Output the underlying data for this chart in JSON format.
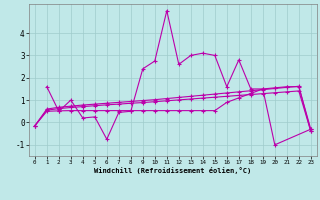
{
  "background_color": "#c0e8e8",
  "grid_color": "#a0cccc",
  "line_color": "#bb00aa",
  "marker": "+",
  "markersize": 3,
  "linewidth": 0.8,
  "xlabel": "Windchill (Refroidissement éolien,°C)",
  "xlim": [
    -0.5,
    23.5
  ],
  "ylim": [
    -1.5,
    5.3
  ],
  "yticks": [
    -1,
    0,
    1,
    2,
    3,
    4
  ],
  "xticks": [
    0,
    1,
    2,
    3,
    4,
    5,
    6,
    7,
    8,
    9,
    10,
    11,
    12,
    13,
    14,
    15,
    16,
    17,
    18,
    19,
    20,
    21,
    22,
    23
  ],
  "series": [
    {
      "x": [
        1,
        2,
        3,
        4,
        5,
        6,
        7,
        8,
        9,
        10,
        11,
        12,
        13,
        14,
        15,
        16,
        17,
        18,
        19,
        20,
        23
      ],
      "y": [
        1.6,
        0.5,
        1.0,
        0.2,
        0.25,
        -0.75,
        0.45,
        0.5,
        2.4,
        2.75,
        5.0,
        2.6,
        3.0,
        3.1,
        3.0,
        1.6,
        2.8,
        1.5,
        1.5,
        -1.0,
        -0.3
      ]
    },
    {
      "x": [
        0,
        1,
        2,
        3,
        4,
        5,
        6,
        7,
        8,
        9,
        10,
        11,
        12,
        13,
        14,
        15,
        16,
        17,
        18,
        19,
        20,
        21,
        22,
        23
      ],
      "y": [
        -0.15,
        0.6,
        0.68,
        0.73,
        0.78,
        0.82,
        0.86,
        0.9,
        0.94,
        0.98,
        1.02,
        1.07,
        1.12,
        1.17,
        1.22,
        1.27,
        1.32,
        1.37,
        1.42,
        1.47,
        1.52,
        1.57,
        1.62,
        -0.4
      ]
    },
    {
      "x": [
        0,
        1,
        2,
        3,
        4,
        5,
        6,
        7,
        8,
        9,
        10,
        11,
        12,
        13,
        14,
        15,
        16,
        17,
        18,
        19,
        20,
        21,
        22,
        23
      ],
      "y": [
        -0.15,
        0.55,
        0.62,
        0.67,
        0.71,
        0.75,
        0.79,
        0.82,
        0.86,
        0.89,
        0.93,
        0.97,
        1.01,
        1.05,
        1.09,
        1.13,
        1.17,
        1.21,
        1.25,
        1.29,
        1.33,
        1.37,
        1.41,
        -0.4
      ]
    },
    {
      "x": [
        0,
        1,
        2,
        3,
        4,
        5,
        6,
        7,
        8,
        9,
        10,
        11,
        12,
        13,
        14,
        15,
        16,
        17,
        18,
        19,
        20,
        21,
        22,
        23
      ],
      "y": [
        -0.15,
        0.5,
        0.52,
        0.53,
        0.53,
        0.53,
        0.53,
        0.53,
        0.53,
        0.53,
        0.53,
        0.53,
        0.53,
        0.53,
        0.53,
        0.53,
        0.9,
        1.1,
        1.3,
        1.5,
        1.55,
        1.6,
        1.6,
        -0.3
      ]
    }
  ]
}
